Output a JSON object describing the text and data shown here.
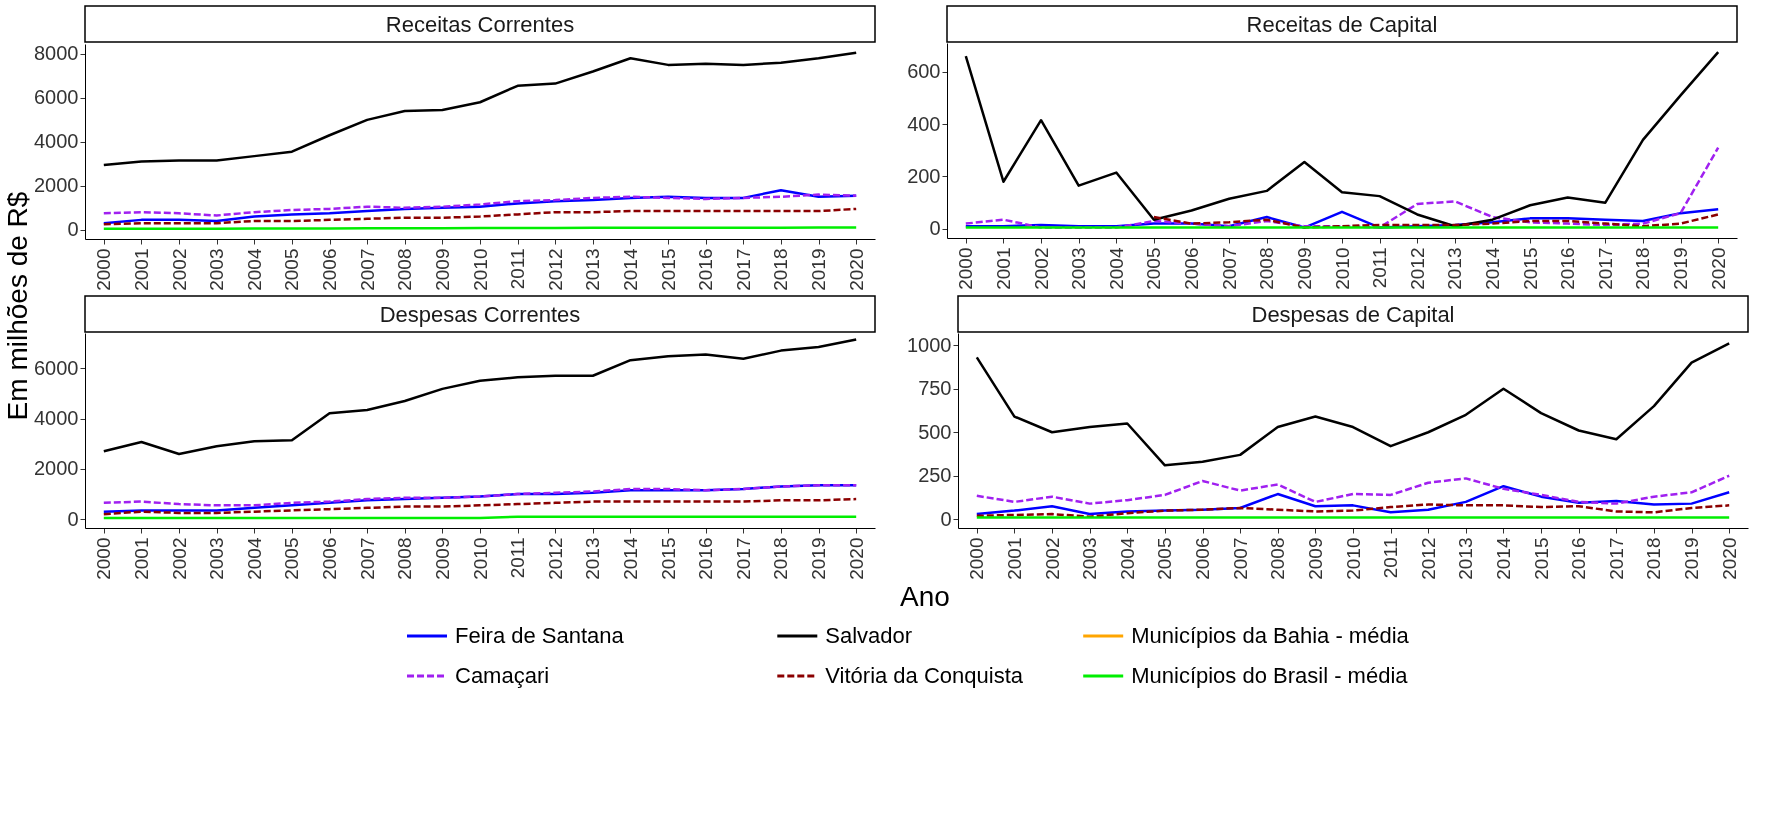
{
  "chart_data": [
    {
      "type": "line",
      "title": "Receitas Correntes",
      "ylabel": "Em milhões de R$",
      "xlabel": "Ano",
      "legend": "bottom",
      "grid": false,
      "categories": [
        "2000",
        "2001",
        "2002",
        "2003",
        "2004",
        "2005",
        "2006",
        "2007",
        "2008",
        "2009",
        "2010",
        "2011",
        "2012",
        "2013",
        "2014",
        "2015",
        "2016",
        "2017",
        "2018",
        "2019",
        "2020"
      ],
      "ylim": [
        -420,
        8450
      ],
      "yticks": [
        0,
        2000,
        4000,
        6000,
        8000
      ],
      "series": [
        {
          "name": "Feira de Santana",
          "color": "#0000ff",
          "line_style": "solid",
          "values": [
            300,
            450,
            450,
            400,
            600,
            700,
            750,
            850,
            950,
            1000,
            1050,
            1200,
            1300,
            1350,
            1450,
            1500,
            1450,
            1450,
            1800,
            1500,
            1550
          ]
        },
        {
          "name": "Camaçari",
          "color": "#a020f0",
          "line_style": "dashed",
          "values": [
            750,
            800,
            750,
            650,
            800,
            900,
            950,
            1050,
            1000,
            1050,
            1150,
            1300,
            1350,
            1450,
            1500,
            1450,
            1400,
            1450,
            1500,
            1600,
            1550
          ]
        },
        {
          "name": "Salvador",
          "color": "#000000",
          "line_style": "solid",
          "values": [
            2950,
            3100,
            3150,
            3150,
            3350,
            3550,
            4300,
            5000,
            5400,
            5450,
            5800,
            6550,
            6650,
            7200,
            7800,
            7500,
            7550,
            7500,
            7600,
            7800,
            8050
          ]
        },
        {
          "name": "Vitória da Conquista",
          "color": "#8b0000",
          "line_style": "dashed",
          "values": [
            250,
            300,
            300,
            300,
            400,
            400,
            450,
            500,
            550,
            550,
            600,
            700,
            800,
            800,
            850,
            850,
            850,
            850,
            850,
            850,
            950
          ]
        },
        {
          "name": "Municípios da Bahia - média",
          "color": "#ffa500",
          "line_style": "solid",
          "values": [
            null,
            null,
            null,
            null,
            null,
            null,
            null,
            null,
            null,
            null,
            null,
            null,
            null,
            null,
            null,
            null,
            null,
            null,
            null,
            null,
            null
          ]
        },
        {
          "name": "Municípios do Brasil - média",
          "color": "#00ee00",
          "line_style": "solid",
          "values": [
            50,
            50,
            50,
            50,
            60,
            60,
            60,
            70,
            70,
            70,
            80,
            80,
            80,
            90,
            90,
            90,
            90,
            90,
            90,
            100,
            100
          ]
        }
      ]
    },
    {
      "type": "line",
      "title": "Receitas de Capital",
      "grid": false,
      "categories": [
        "2000",
        "2001",
        "2002",
        "2003",
        "2004",
        "2005",
        "2006",
        "2007",
        "2008",
        "2009",
        "2010",
        "2011",
        "2012",
        "2013",
        "2014",
        "2015",
        "2016",
        "2017",
        "2018",
        "2019",
        "2020"
      ],
      "ylim": [
        -35,
        710
      ],
      "yticks": [
        0,
        200,
        400,
        600
      ],
      "series": [
        {
          "name": "Feira de Santana",
          "color": "#0000ff",
          "line_style": "solid",
          "values": [
            10,
            10,
            15,
            10,
            10,
            20,
            20,
            10,
            45,
            5,
            65,
            5,
            10,
            15,
            25,
            40,
            40,
            35,
            30,
            60,
            75
          ]
        },
        {
          "name": "Camaçari",
          "color": "#a020f0",
          "line_style": "dashed",
          "values": [
            20,
            35,
            5,
            5,
            5,
            30,
            20,
            10,
            30,
            10,
            10,
            5,
            95,
            105,
            45,
            25,
            20,
            15,
            20,
            60,
            310
          ]
        },
        {
          "name": "Salvador",
          "color": "#000000",
          "line_style": "solid",
          "values": [
            660,
            180,
            415,
            165,
            215,
            35,
            70,
            115,
            145,
            255,
            140,
            125,
            55,
            10,
            35,
            90,
            120,
            100,
            340,
            510,
            675
          ]
        },
        {
          "name": "Vitória da Conquista",
          "color": "#8b0000",
          "line_style": "dashed",
          "values": [
            null,
            null,
            null,
            null,
            null,
            45,
            20,
            25,
            35,
            5,
            10,
            15,
            15,
            15,
            20,
            30,
            30,
            20,
            10,
            20,
            55
          ]
        },
        {
          "name": "Municípios do Brasil - média",
          "color": "#00ee00",
          "line_style": "solid",
          "values": [
            5,
            5,
            5,
            5,
            5,
            5,
            5,
            5,
            5,
            5,
            5,
            5,
            5,
            5,
            5,
            5,
            5,
            5,
            5,
            5,
            5
          ]
        }
      ]
    },
    {
      "type": "line",
      "title": "Despesas Correntes",
      "grid": false,
      "categories": [
        "2000",
        "2001",
        "2002",
        "2003",
        "2004",
        "2005",
        "2006",
        "2007",
        "2008",
        "2009",
        "2010",
        "2011",
        "2012",
        "2013",
        "2014",
        "2015",
        "2016",
        "2017",
        "2018",
        "2019",
        "2020"
      ],
      "ylim": [
        -350,
        7400
      ],
      "yticks": [
        0,
        2000,
        4000,
        6000
      ],
      "series": [
        {
          "name": "Feira de Santana",
          "color": "#0000ff",
          "line_style": "solid",
          "values": [
            300,
            350,
            350,
            350,
            450,
            550,
            650,
            750,
            800,
            850,
            900,
            1000,
            1000,
            1050,
            1150,
            1150,
            1150,
            1200,
            1300,
            1350,
            1350
          ]
        },
        {
          "name": "Camaçari",
          "color": "#a020f0",
          "line_style": "dashed",
          "values": [
            650,
            700,
            600,
            550,
            550,
            650,
            700,
            800,
            850,
            850,
            900,
            1000,
            1050,
            1100,
            1200,
            1200,
            1150,
            1200,
            1300,
            1350,
            1350
          ]
        },
        {
          "name": "Salvador",
          "color": "#000000",
          "line_style": "solid",
          "values": [
            2700,
            3070,
            2590,
            2900,
            3100,
            3140,
            4210,
            4340,
            4700,
            5180,
            5500,
            5640,
            5700,
            5700,
            6320,
            6480,
            6550,
            6380,
            6700,
            6840,
            7140
          ]
        },
        {
          "name": "Vitória da Conquista",
          "color": "#8b0000",
          "line_style": "dashed",
          "values": [
            200,
            300,
            250,
            250,
            300,
            350,
            400,
            450,
            500,
            500,
            550,
            600,
            650,
            700,
            700,
            700,
            700,
            700,
            750,
            750,
            800
          ]
        },
        {
          "name": "Municípios do Brasil - média",
          "color": "#00ee00",
          "line_style": "solid",
          "values": [
            50,
            50,
            50,
            50,
            50,
            50,
            50,
            50,
            50,
            50,
            50,
            100,
            100,
            100,
            100,
            100,
            100,
            100,
            100,
            100,
            100
          ]
        }
      ]
    },
    {
      "type": "line",
      "title": "Despesas de Capital",
      "grid": false,
      "categories": [
        "2000",
        "2001",
        "2002",
        "2003",
        "2004",
        "2005",
        "2006",
        "2007",
        "2008",
        "2009",
        "2010",
        "2011",
        "2012",
        "2013",
        "2014",
        "2015",
        "2016",
        "2017",
        "2018",
        "2019",
        "2020"
      ],
      "ylim": [
        -50,
        1070
      ],
      "yticks": [
        0,
        250,
        500,
        750,
        1000
      ],
      "series": [
        {
          "name": "Feira de Santana",
          "color": "#0000ff",
          "line_style": "solid",
          "values": [
            30,
            50,
            75,
            30,
            45,
            50,
            55,
            65,
            145,
            75,
            80,
            40,
            55,
            100,
            190,
            130,
            95,
            105,
            85,
            90,
            155
          ]
        },
        {
          "name": "Camaçari",
          "color": "#a020f0",
          "line_style": "dashed",
          "values": [
            135,
            100,
            130,
            90,
            110,
            140,
            220,
            165,
            200,
            100,
            145,
            140,
            210,
            235,
            175,
            140,
            100,
            90,
            130,
            155,
            250
          ]
        },
        {
          "name": "Salvador",
          "color": "#000000",
          "line_style": "solid",
          "values": [
            930,
            590,
            500,
            530,
            550,
            310,
            330,
            370,
            530,
            590,
            530,
            420,
            500,
            600,
            750,
            610,
            510,
            460,
            650,
            900,
            1010
          ]
        },
        {
          "name": "Vitória da Conquista",
          "color": "#8b0000",
          "line_style": "dashed",
          "values": [
            20,
            25,
            30,
            15,
            35,
            50,
            55,
            65,
            55,
            45,
            50,
            70,
            85,
            80,
            80,
            70,
            75,
            45,
            40,
            65,
            80
          ]
        },
        {
          "name": "Municípios do Brasil - média",
          "color": "#00ee00",
          "line_style": "solid",
          "values": [
            10,
            10,
            10,
            10,
            10,
            10,
            10,
            10,
            10,
            10,
            10,
            10,
            10,
            10,
            10,
            10,
            10,
            10,
            10,
            10,
            10
          ]
        }
      ]
    }
  ]
}
